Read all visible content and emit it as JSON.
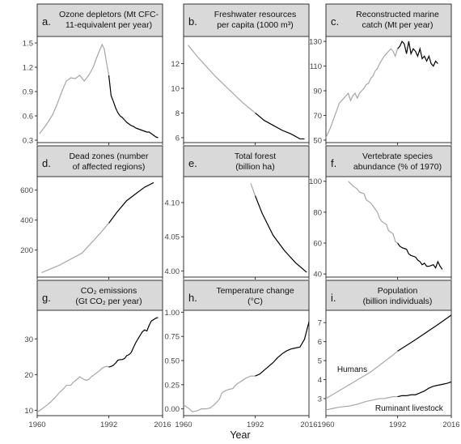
{
  "figure": {
    "xlabel": "Year",
    "colors": {
      "before_1992": "#a6a6a6",
      "after_1992": "#000000",
      "strip": "#d9d9d9"
    }
  },
  "chart_data": [
    {
      "type": "line",
      "label": "a.",
      "title_lines": [
        "Ozone depletors (Mt CFC-",
        "11-equivalent per year)"
      ],
      "xlim": [
        1960,
        2016
      ],
      "ylim": [
        0.27,
        1.58
      ],
      "yticks": [
        "0.3",
        "0.6",
        "0.9",
        "1.2",
        "1.5"
      ],
      "ytick_values": [
        0.3,
        0.6,
        0.9,
        1.2,
        1.5
      ],
      "x": [
        1961,
        1963,
        1965,
        1967,
        1969,
        1971,
        1973,
        1975,
        1977,
        1979,
        1981,
        1983,
        1985,
        1987,
        1989,
        1990,
        1991,
        1992,
        1993,
        1994,
        1995,
        1996,
        1997,
        1998,
        1999,
        2000,
        2001,
        2002,
        2003,
        2004,
        2005,
        2006,
        2007,
        2008,
        2009,
        2010,
        2011,
        2012,
        2013,
        2014
      ],
      "y": [
        0.38,
        0.45,
        0.53,
        0.62,
        0.75,
        0.9,
        1.03,
        1.07,
        1.06,
        1.1,
        1.03,
        1.1,
        1.2,
        1.35,
        1.48,
        1.42,
        1.25,
        1.1,
        0.85,
        0.78,
        0.7,
        0.64,
        0.6,
        0.58,
        0.55,
        0.52,
        0.5,
        0.48,
        0.47,
        0.45,
        0.44,
        0.43,
        0.42,
        0.41,
        0.4,
        0.4,
        0.38,
        0.36,
        0.34,
        0.33
      ]
    },
    {
      "type": "line",
      "label": "b.",
      "title_lines": [
        "Freshwater resources",
        "per capita (1000 m³)"
      ],
      "xlim": [
        1960,
        2016
      ],
      "ylim": [
        5.6,
        14.2
      ],
      "yticks": [
        "6",
        "8",
        "10",
        "12"
      ],
      "ytick_values": [
        6,
        8,
        10,
        12
      ],
      "x": [
        1962,
        1966,
        1970,
        1974,
        1978,
        1982,
        1986,
        1990,
        1992,
        1996,
        2000,
        2004,
        2008,
        2012,
        2014
      ],
      "y": [
        13.5,
        12.6,
        11.8,
        11.0,
        10.3,
        9.6,
        8.9,
        8.3,
        8.0,
        7.4,
        7.0,
        6.6,
        6.3,
        5.9,
        5.9
      ]
    },
    {
      "type": "line",
      "label": "c.",
      "title_lines": [
        "Reconstructed marine",
        "catch (Mt per year)"
      ],
      "xlim": [
        1960,
        2016
      ],
      "ylim": [
        48,
        134
      ],
      "yticks": [
        "50",
        "70",
        "90",
        "110",
        "130"
      ],
      "ytick_values": [
        50,
        70,
        90,
        110,
        130
      ],
      "x": [
        1960,
        1962,
        1964,
        1966,
        1968,
        1969,
        1970,
        1971,
        1972,
        1973,
        1974,
        1975,
        1976,
        1977,
        1978,
        1979,
        1980,
        1981,
        1982,
        1983,
        1984,
        1985,
        1986,
        1987,
        1988,
        1989,
        1990,
        1991,
        1992,
        1993,
        1994,
        1995,
        1996,
        1997,
        1998,
        1999,
        2000,
        2001,
        2002,
        2003,
        2004,
        2005,
        2006,
        2007,
        2008,
        2009,
        2010
      ],
      "y": [
        52,
        60,
        70,
        80,
        84,
        86,
        88,
        82,
        86,
        88,
        84,
        88,
        90,
        92,
        95,
        96,
        100,
        102,
        106,
        108,
        112,
        115,
        118,
        120,
        122,
        124,
        122,
        118,
        124,
        126,
        130,
        128,
        120,
        130,
        120,
        124,
        122,
        118,
        124,
        116,
        118,
        114,
        118,
        112,
        110,
        114,
        112
      ]
    },
    {
      "type": "line",
      "label": "d.",
      "title_lines": [
        "Dead zones (number",
        "of affected regions)"
      ],
      "xlim": [
        1960,
        2016
      ],
      "ylim": [
        20,
        690
      ],
      "yticks": [
        "200",
        "400",
        "600"
      ],
      "ytick_values": [
        200,
        400,
        600
      ],
      "x": [
        1962,
        1970,
        1980,
        1988,
        1992,
        1996,
        2000,
        2004,
        2008,
        2012
      ],
      "y": [
        50,
        100,
        180,
        310,
        380,
        460,
        530,
        575,
        620,
        650
      ]
    },
    {
      "type": "line",
      "label": "e.",
      "title_lines": [
        "Total forest",
        "(billion ha)"
      ],
      "xlim": [
        1960,
        2016
      ],
      "ylim": [
        3.991,
        4.138
      ],
      "yticks": [
        "4.00",
        "4.05",
        "4.10"
      ],
      "ytick_values": [
        4.0,
        4.05,
        4.1
      ],
      "x": [
        1990,
        1992,
        1995,
        2000,
        2005,
        2010,
        2015
      ],
      "y": [
        4.128,
        4.11,
        4.085,
        4.052,
        4.03,
        4.012,
        3.998
      ]
    },
    {
      "type": "line",
      "label": "f.",
      "title_lines": [
        "Vertebrate species",
        "abundance (% of 1970)"
      ],
      "xlim": [
        1960,
        2016
      ],
      "ylim": [
        38,
        103
      ],
      "yticks": [
        "40",
        "60",
        "80",
        "100"
      ],
      "ytick_values": [
        40,
        60,
        80,
        100
      ],
      "x": [
        1970,
        1972,
        1974,
        1975,
        1977,
        1978,
        1980,
        1981,
        1983,
        1984,
        1985,
        1987,
        1988,
        1990,
        1991,
        1992,
        1993,
        1994,
        1996,
        1997,
        1998,
        2000,
        2001,
        2002,
        2003,
        2004,
        2005,
        2006,
        2008,
        2009,
        2010,
        2011,
        2012
      ],
      "y": [
        100,
        97,
        95,
        93,
        92,
        88,
        86,
        84,
        80,
        76,
        74,
        72,
        68,
        66,
        61,
        60,
        58,
        57,
        56,
        53,
        52,
        51,
        49,
        48,
        46,
        47,
        45,
        45,
        46,
        44,
        48,
        45,
        43
      ]
    },
    {
      "type": "line",
      "label": "g.",
      "title_lines": [
        "CO₂ emissions",
        "(Gt CO₂ per year)"
      ],
      "xlim": [
        1960,
        2016
      ],
      "ylim": [
        8.5,
        38
      ],
      "yticks": [
        "10",
        "20",
        "30"
      ],
      "ytick_values": [
        10,
        20,
        30
      ],
      "x": [
        1960,
        1962,
        1964,
        1966,
        1968,
        1970,
        1972,
        1973,
        1974,
        1975,
        1976,
        1978,
        1979,
        1980,
        1981,
        1982,
        1983,
        1984,
        1986,
        1988,
        1989,
        1990,
        1991,
        1992,
        1993,
        1994,
        1995,
        1996,
        1997,
        1998,
        1999,
        2000,
        2001,
        2002,
        2003,
        2004,
        2005,
        2006,
        2007,
        2008,
        2009,
        2010,
        2011,
        2012,
        2013,
        2014
      ],
      "y": [
        9.5,
        10.3,
        11.3,
        12.3,
        13.6,
        15,
        16.2,
        17,
        17,
        17,
        17.8,
        18.8,
        19.4,
        19.0,
        18.6,
        18.4,
        18.6,
        19.3,
        20.2,
        21.2,
        21.8,
        22.1,
        22.3,
        22.1,
        22.3,
        22.6,
        23.2,
        24,
        24.2,
        24.2,
        24.5,
        25.3,
        25.6,
        26.2,
        27.6,
        28.9,
        30.0,
        31.0,
        32.0,
        32.5,
        32.2,
        33.8,
        35.0,
        35.4,
        35.8,
        36.0
      ]
    },
    {
      "type": "line",
      "label": "h.",
      "title_lines": [
        "Temperature change",
        "(°C)"
      ],
      "xlim": [
        1960,
        2016
      ],
      "ylim": [
        -0.07,
        1.02
      ],
      "yticks": [
        "0.00",
        "0.25",
        "0.50",
        "0.75",
        "1.00"
      ],
      "ytick_values": [
        0,
        0.25,
        0.5,
        0.75,
        1.0
      ],
      "x": [
        1960,
        1962,
        1964,
        1966,
        1968,
        1970,
        1972,
        1974,
        1976,
        1977,
        1978,
        1980,
        1982,
        1983,
        1984,
        1986,
        1988,
        1990,
        1992,
        1994,
        1996,
        1998,
        2000,
        2002,
        2004,
        2006,
        2008,
        2010,
        2012,
        2014,
        2016
      ],
      "y": [
        0.04,
        0.01,
        -0.03,
        -0.02,
        0.0,
        0.0,
        0.01,
        0.05,
        0.1,
        0.16,
        0.18,
        0.2,
        0.21,
        0.24,
        0.26,
        0.29,
        0.32,
        0.34,
        0.34,
        0.36,
        0.4,
        0.44,
        0.48,
        0.53,
        0.57,
        0.6,
        0.62,
        0.63,
        0.64,
        0.72,
        0.9
      ]
    },
    {
      "type": "line",
      "label": "i.",
      "title_lines": [
        "Population",
        "(billion individuals)"
      ],
      "xlim": [
        1960,
        2016
      ],
      "ylim": [
        2.1,
        7.65
      ],
      "yticks": [
        "3",
        "4",
        "5",
        "6",
        "7"
      ],
      "ytick_values": [
        3,
        4,
        5,
        6,
        7
      ],
      "series": [
        {
          "name": "Humans",
          "x": [
            1960,
            1970,
            1980,
            1990,
            1992,
            2000,
            2010,
            2016
          ],
          "y": [
            3.0,
            3.7,
            4.4,
            5.3,
            5.5,
            6.1,
            6.9,
            7.4
          ]
        },
        {
          "name": "Ruminant livestock",
          "x": [
            1960,
            1964,
            1966,
            1970,
            1974,
            1978,
            1982,
            1984,
            1986,
            1988,
            1990,
            1992,
            1994,
            1996,
            1998,
            2000,
            2002,
            2004,
            2006,
            2008,
            2010,
            2012,
            2014,
            2016
          ],
          "y": [
            2.4,
            2.5,
            2.55,
            2.6,
            2.7,
            2.85,
            2.95,
            3.0,
            3.0,
            3.05,
            3.1,
            3.1,
            3.15,
            3.15,
            3.2,
            3.2,
            3.3,
            3.4,
            3.55,
            3.65,
            3.7,
            3.75,
            3.8,
            3.88
          ]
        }
      ]
    }
  ]
}
